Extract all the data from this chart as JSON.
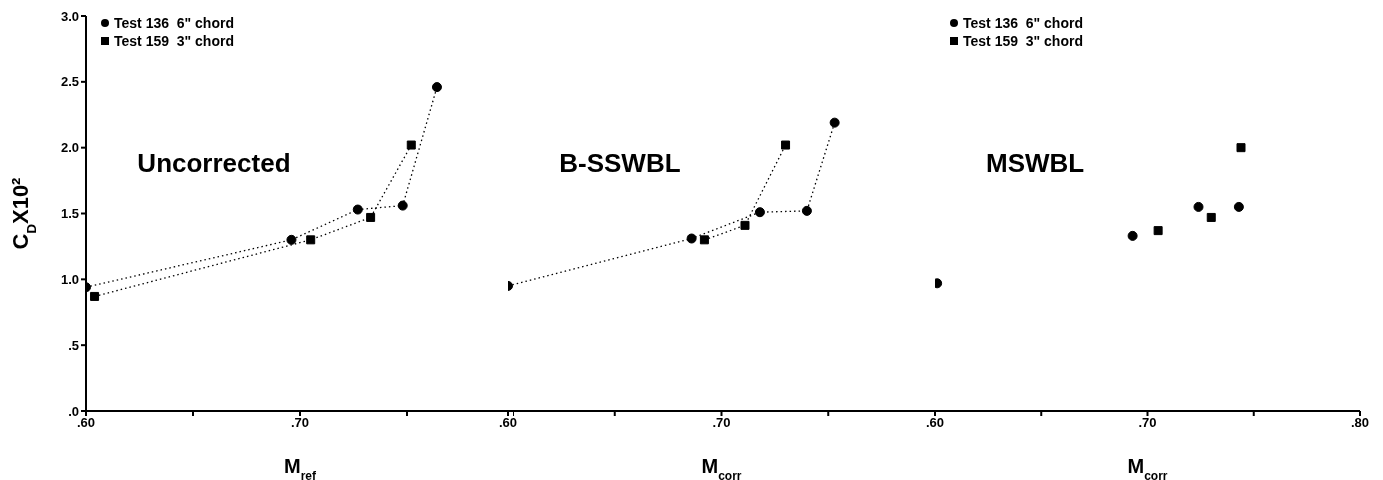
{
  "chart_data": [
    {
      "type": "line",
      "annotations": [
        "Uncorrected"
      ],
      "xlabel": "M$_{ref}$",
      "ylabel": "C$_{D}$X10²",
      "xlim": [
        0.6,
        0.8
      ],
      "xticks": [
        {
          "value": 0.6,
          "label": ".60"
        },
        {
          "value": 0.65,
          "label": null
        },
        {
          "value": 0.7,
          "label": ".70"
        },
        {
          "value": 0.75,
          "label": null
        },
        {
          "value": 0.8,
          "label": null
        }
      ],
      "ylim": [
        0,
        3
      ],
      "yticks": [
        {
          "value": 0,
          "label": ".0"
        },
        {
          "value": 0.5,
          "label": ".5"
        },
        {
          "value": 1,
          "label": "1.0"
        },
        {
          "value": 1.5,
          "label": "1.5"
        },
        {
          "value": 2,
          "label": "2.0"
        },
        {
          "value": 2.5,
          "label": "2.5"
        },
        {
          "value": 3,
          "label": "3.0"
        }
      ],
      "legend": "top left",
      "line_style": "dotted",
      "grid": false,
      "series": [
        {
          "name": "Test 136  6\" chord",
          "color": "#000000",
          "marker": "circle",
          "x": [
            0.6,
            0.696,
            0.727,
            0.748,
            0.764
          ],
          "values": [
            0.94,
            1.3,
            1.53,
            1.56,
            2.46
          ]
        },
        {
          "name": "Test 159  3\" chord",
          "color": "#000000",
          "marker": "square",
          "x": [
            0.604,
            0.705,
            0.733,
            0.752
          ],
          "values": [
            0.87,
            1.3,
            1.47,
            2.02
          ]
        }
      ]
    },
    {
      "type": "line",
      "annotations": [
        "B-SSWBL"
      ],
      "xlabel": "M$_{corr}$",
      "xlim": [
        0.6,
        0.8
      ],
      "xticks": [
        {
          "value": 0.6,
          "label": ".60"
        },
        {
          "value": 0.65,
          "label": null
        },
        {
          "value": 0.7,
          "label": ".70"
        },
        {
          "value": 0.75,
          "label": null
        },
        {
          "value": 0.8,
          "label": null
        }
      ],
      "ylim": [
        0,
        3
      ],
      "tick_labels": "x",
      "line_style": "dotted",
      "grid": false,
      "series": [
        {
          "color": "#000000",
          "marker": "circle",
          "x": [
            0.6,
            0.686,
            0.718,
            0.74,
            0.753
          ],
          "values": [
            0.95,
            1.31,
            1.51,
            1.52,
            2.19
          ]
        },
        {
          "color": "#000000",
          "marker": "square",
          "x": [
            0.692,
            0.711,
            0.73
          ],
          "values": [
            1.3,
            1.41,
            2.02
          ]
        }
      ]
    },
    {
      "type": "scatter",
      "annotations": [
        "MSWBL"
      ],
      "xlabel": "M$_{corr}$",
      "xlim": [
        0.6,
        0.8
      ],
      "xticks": [
        {
          "value": 0.6,
          "label": ".60"
        },
        {
          "value": 0.65,
          "label": null
        },
        {
          "value": 0.7,
          "label": ".70"
        },
        {
          "value": 0.75,
          "label": null
        },
        {
          "value": 0.8,
          "label": ".80"
        }
      ],
      "ylim": [
        0,
        3
      ],
      "tick_labels": "x",
      "legend": "top left",
      "grid": false,
      "series": [
        {
          "name": "Test 136  6\" chord",
          "color": "#000000",
          "marker": "circle",
          "x": [
            0.601,
            0.693,
            0.724,
            0.743
          ],
          "values": [
            0.97,
            1.33,
            1.55,
            1.55
          ]
        },
        {
          "name": "Test 159  3\" chord",
          "color": "#000000",
          "marker": "square",
          "x": [
            0.705,
            0.73,
            0.744
          ],
          "values": [
            1.37,
            1.47,
            2.0
          ]
        }
      ]
    }
  ]
}
